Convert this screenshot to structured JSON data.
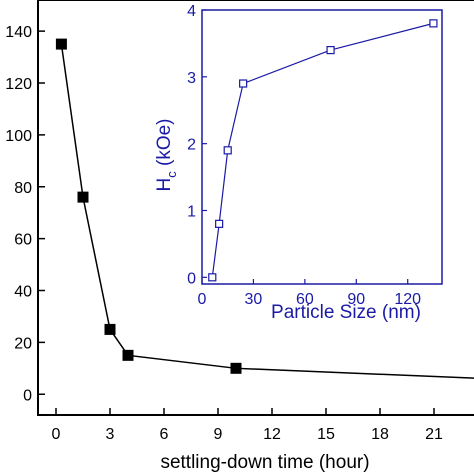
{
  "chart_data": [
    {
      "type": "line",
      "markers": "filled-square",
      "xlabel": "settling-down time (hour)",
      "ylabel": "",
      "xlim": [
        -1,
        24
      ],
      "ylim": [
        -8,
        152
      ],
      "xticks": [
        0,
        3,
        6,
        9,
        12,
        15,
        18,
        21
      ],
      "yticks": [
        0,
        20,
        40,
        60,
        80,
        100,
        120,
        140
      ],
      "ytick_labels": [
        "0",
        "20",
        "40",
        "60",
        "80",
        "100",
        "120",
        "140"
      ],
      "series": [
        {
          "color": "#000000",
          "x": [
            0.3,
            1.5,
            3,
            4,
            10,
            24
          ],
          "y": [
            135,
            76,
            25,
            15,
            10,
            6
          ]
        }
      ]
    },
    {
      "type": "line",
      "markers": "open-square",
      "inset": true,
      "xlabel": "Particle Size (nm)",
      "ylabel_main": "H",
      "ylabel_sub": "c",
      "ylabel_rest": " (kOe)",
      "xlim": [
        0,
        140
      ],
      "ylim": [
        -0.1,
        4
      ],
      "xticks": [
        0,
        30,
        60,
        90,
        120
      ],
      "yticks": [
        0,
        1,
        2,
        3,
        4
      ],
      "series": [
        {
          "color": "#1a1aa6",
          "x": [
            6,
            10,
            15,
            24,
            75,
            135
          ],
          "y": [
            0,
            0.8,
            1.9,
            2.9,
            3.4,
            3.8
          ]
        }
      ]
    }
  ]
}
